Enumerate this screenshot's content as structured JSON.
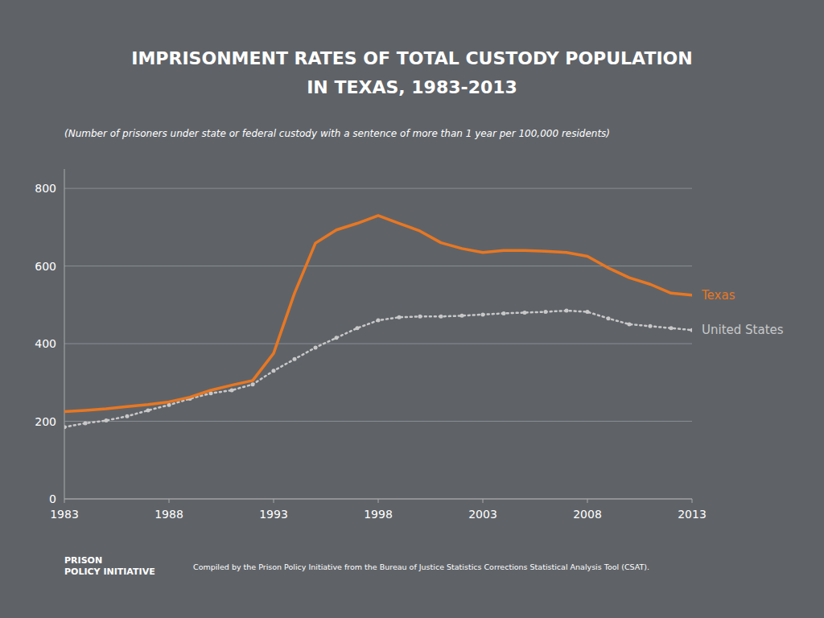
{
  "chart_data": {
    "type": "line",
    "title": "IMPRISONMENT RATES OF TOTAL CUSTODY POPULATION\nIN TEXAS, 1983-2013",
    "subtitle": "(Number of prisoners under state or federal custody with a sentence of more than 1 year per 100,000 residents)",
    "annotations": [
      {
        "text": "PRISON\nPOLICY INITIATIVE"
      },
      {
        "text": "Compiled by the Prison Policy Initiative from the Bureau of Justice Statistics Corrections Statistical Analysis Tool (CSAT)."
      }
    ],
    "x": [
      1983,
      1984,
      1985,
      1986,
      1987,
      1988,
      1989,
      1990,
      1991,
      1992,
      1993,
      1994,
      1995,
      1996,
      1997,
      1998,
      1999,
      2000,
      2001,
      2002,
      2003,
      2004,
      2005,
      2006,
      2007,
      2008,
      2009,
      2010,
      2011,
      2012,
      2013
    ],
    "series": [
      {
        "name": "United States",
        "color": "#c8c8c8",
        "line_style": "dotted",
        "marker": "point",
        "values": [
          185,
          195,
          202,
          213,
          228,
          242,
          258,
          272,
          280,
          295,
          330,
          360,
          390,
          415,
          440,
          460,
          468,
          470,
          470,
          472,
          475,
          478,
          480,
          482,
          485,
          482,
          465,
          450,
          445,
          440,
          435
        ]
      },
      {
        "name": "Texas",
        "color": "#e87722",
        "line_style": "solid",
        "values": [
          225,
          228,
          232,
          238,
          243,
          250,
          262,
          280,
          293,
          305,
          375,
          530,
          659,
          693,
          710,
          730,
          710,
          690,
          660,
          645,
          635,
          640,
          640,
          638,
          635,
          625,
          595,
          570,
          553,
          530,
          525
        ]
      }
    ],
    "xlim": [
      1983,
      2013
    ],
    "xticks": [
      1983,
      1988,
      1993,
      1998,
      2003,
      2008,
      2013
    ],
    "ylim": [
      0,
      850
    ],
    "yticks": [
      0,
      200,
      400,
      600,
      800
    ],
    "grid": true
  }
}
